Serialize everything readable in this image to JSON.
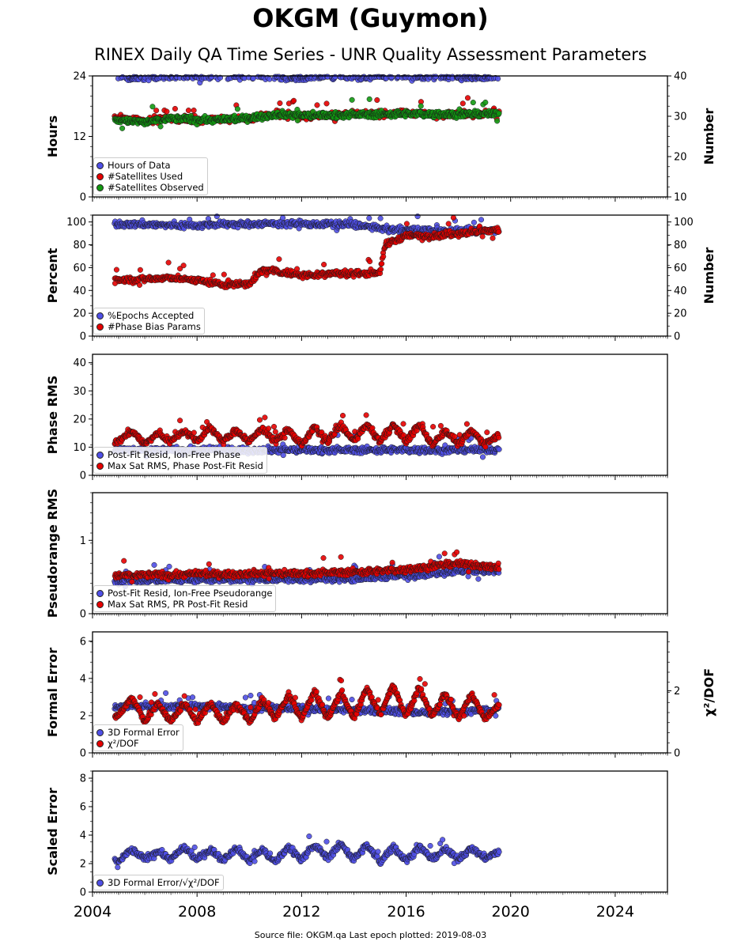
{
  "title": "OKGM (Guymon)",
  "subtitle": "RINEX Daily QA Time Series - UNR Quality Assessment Parameters",
  "source_text": "Source file: OKGM.qa Last epoch plotted: 2019-08-03",
  "colors": {
    "blue": "#4f4fe6",
    "red": "#e60000",
    "green": "#119911",
    "edge": "#1a1a1a"
  },
  "chart_data": [
    {
      "id": "hours",
      "type": "scatter",
      "ylabel": "Hours",
      "ylabel_right": "Number",
      "xlim": [
        2004,
        2026
      ],
      "ylim": [
        0,
        24
      ],
      "yticks": [
        "0",
        "12",
        "24"
      ],
      "ylim_right": [
        10,
        40
      ],
      "yticks_right": [
        "10",
        "20",
        "30",
        "40"
      ],
      "legend_placement": "lower-left",
      "series": [
        {
          "name": "Hours of Data",
          "color": "blue",
          "axis": "left",
          "x": [
            2005.0,
            2005.5,
            2006.0,
            2006.5,
            2007.0,
            2007.5,
            2008.0,
            2009.0,
            2010.0,
            2011.0,
            2011.8,
            2012.5,
            2013.5,
            2014.5,
            2015.5,
            2016.5,
            2017.5,
            2018.5,
            2019.5
          ],
          "values": [
            24,
            23.6,
            23.8,
            24,
            24,
            23.8,
            24,
            24,
            24,
            24,
            23.5,
            23.8,
            24,
            23.7,
            24,
            23.8,
            24,
            23.6,
            24
          ]
        },
        {
          "name": "#Satellites Used",
          "color": "red",
          "axis": "right",
          "x": [
            2005.0,
            2006.0,
            2007.0,
            2008.0,
            2009.0,
            2010.0,
            2011.0,
            2012.0,
            2013.0,
            2014.0,
            2015.0,
            2016.0,
            2017.0,
            2018.0,
            2019.0,
            2019.5
          ],
          "values": [
            29.5,
            29,
            29.5,
            29,
            29.2,
            29.5,
            30.5,
            30,
            30.2,
            30.5,
            30.5,
            30.8,
            30.5,
            30.6,
            30.5,
            30.7
          ]
        },
        {
          "name": "#Satellites Observed",
          "color": "green",
          "axis": "right",
          "x": [
            2005.0,
            2006.0,
            2007.0,
            2008.0,
            2009.0,
            2010.0,
            2011.0,
            2012.0,
            2013.0,
            2014.0,
            2015.0,
            2016.0,
            2017.0,
            2018.0,
            2019.0,
            2019.5
          ],
          "values": [
            29,
            28.5,
            29.5,
            29.2,
            29,
            29.6,
            30.5,
            30.2,
            30.3,
            30.4,
            30.5,
            30.6,
            30.5,
            30.6,
            30.5,
            30.6
          ]
        }
      ]
    },
    {
      "id": "percent",
      "type": "scatter",
      "ylabel": "Percent",
      "ylabel_right": "Number",
      "xlim": [
        2004,
        2026
      ],
      "ylim": [
        0,
        106
      ],
      "yticks": [
        "0",
        "20",
        "40",
        "60",
        "80",
        "100"
      ],
      "ylim_right": [
        0,
        106
      ],
      "yticks_right": [
        "0",
        "20",
        "40",
        "60",
        "80",
        "100"
      ],
      "legend_placement": "lower-left",
      "series": [
        {
          "name": "%Epochs Accepted",
          "color": "blue",
          "axis": "left",
          "x": [
            2005.0,
            2006.0,
            2007.0,
            2008.0,
            2009.0,
            2010.0,
            2011.0,
            2012.0,
            2013.0,
            2014.0,
            2015.0,
            2016.0,
            2017.0,
            2018.0,
            2019.0,
            2019.5
          ],
          "values": [
            98,
            98,
            97,
            97,
            98,
            98,
            99,
            98,
            98,
            98,
            94,
            93,
            92,
            93,
            92,
            93
          ]
        },
        {
          "name": "#Phase Bias Params",
          "color": "red",
          "axis": "right",
          "x": [
            2005.0,
            2006.0,
            2007.0,
            2008.0,
            2009.0,
            2010.0,
            2010.5,
            2011.0,
            2012.0,
            2013.0,
            2014.0,
            2015.0,
            2015.2,
            2016.0,
            2017.0,
            2018.0,
            2019.0,
            2019.5
          ],
          "values": [
            49,
            50,
            51,
            49,
            45,
            46,
            58,
            57,
            53,
            55,
            55,
            56,
            80,
            88,
            88,
            90,
            92,
            93
          ]
        }
      ]
    },
    {
      "id": "phase_rms",
      "type": "scatter",
      "ylabel": "Phase RMS",
      "xlim": [
        2004,
        2026
      ],
      "ylim": [
        0,
        43
      ],
      "yticks": [
        "0",
        "10",
        "20",
        "30",
        "40"
      ],
      "legend_placement": "lower-left",
      "series": [
        {
          "name": "Post-Fit Resid, Ion-Free Phase",
          "color": "blue",
          "axis": "left",
          "x": [
            2005.0,
            2006.0,
            2007.0,
            2008.0,
            2009.0,
            2010.0,
            2011.0,
            2012.0,
            2013.0,
            2014.0,
            2015.0,
            2016.0,
            2017.0,
            2018.0,
            2019.0,
            2019.5
          ],
          "values": [
            9,
            9,
            9,
            9,
            9,
            9,
            9,
            9,
            9,
            9,
            9,
            9,
            9,
            9,
            9,
            9
          ]
        },
        {
          "name": "Max Sat RMS, Phase Post-Fit Resid",
          "color": "red",
          "axis": "left",
          "x": [
            2005.0,
            2005.5,
            2006.0,
            2006.5,
            2007.0,
            2007.5,
            2008.0,
            2008.5,
            2009.0,
            2009.5,
            2010.0,
            2010.5,
            2011.0,
            2011.5,
            2012.0,
            2012.5,
            2013.0,
            2013.5,
            2014.0,
            2014.5,
            2015.0,
            2015.5,
            2016.0,
            2016.5,
            2017.0,
            2017.5,
            2018.0,
            2018.5,
            2019.0,
            2019.5
          ],
          "values": [
            12,
            16,
            11,
            15,
            12,
            16,
            12,
            17,
            12,
            16,
            12,
            17,
            12,
            16,
            11,
            17,
            12,
            18,
            12,
            18,
            12,
            18,
            12,
            18,
            11,
            16,
            11,
            16,
            11,
            14
          ]
        }
      ]
    },
    {
      "id": "pseudorange_rms",
      "type": "scatter",
      "ylabel": "Pseudorange RMS",
      "xlim": [
        2004,
        2026
      ],
      "ylim": [
        0,
        1.65
      ],
      "yticks": [
        "0",
        "1"
      ],
      "legend_placement": "lower-left",
      "series": [
        {
          "name": "Post-Fit Resid, Ion-Free Pseudorange",
          "color": "blue",
          "axis": "left",
          "x": [
            2005.0,
            2006.0,
            2007.0,
            2008.0,
            2009.0,
            2010.0,
            2011.0,
            2012.0,
            2013.0,
            2014.0,
            2015.0,
            2016.0,
            2017.0,
            2018.0,
            2019.0,
            2019.5
          ],
          "values": [
            0.45,
            0.45,
            0.46,
            0.46,
            0.47,
            0.47,
            0.47,
            0.47,
            0.48,
            0.48,
            0.5,
            0.52,
            0.55,
            0.58,
            0.58,
            0.57
          ]
        },
        {
          "name": "Max Sat RMS, PR Post-Fit Resid",
          "color": "red",
          "axis": "left",
          "x": [
            2005.0,
            2006.0,
            2007.0,
            2008.0,
            2009.0,
            2010.0,
            2011.0,
            2012.0,
            2013.0,
            2014.0,
            2015.0,
            2016.0,
            2017.0,
            2018.0,
            2019.0,
            2019.5
          ],
          "values": [
            0.52,
            0.53,
            0.53,
            0.54,
            0.54,
            0.55,
            0.55,
            0.55,
            0.56,
            0.57,
            0.58,
            0.6,
            0.65,
            0.68,
            0.65,
            0.63
          ]
        }
      ]
    },
    {
      "id": "formal_error",
      "type": "scatter",
      "ylabel": "Formal Error",
      "ylabel_right": "χ²/DOF",
      "xlim": [
        2004,
        2026
      ],
      "ylim": [
        0,
        6.5
      ],
      "yticks": [
        "0",
        "2",
        "4",
        "6"
      ],
      "ylim_right": [
        0,
        3.9
      ],
      "yticks_right": [
        "0",
        "2"
      ],
      "legend_placement": "lower-left",
      "series": [
        {
          "name": "3D Formal Error",
          "color": "blue",
          "axis": "left",
          "x": [
            2005.0,
            2006.0,
            2007.0,
            2008.0,
            2009.0,
            2010.0,
            2011.0,
            2012.0,
            2013.0,
            2014.0,
            2015.0,
            2016.0,
            2017.0,
            2018.0,
            2019.0,
            2019.5
          ],
          "values": [
            2.5,
            2.5,
            2.5,
            2.5,
            2.5,
            2.4,
            2.4,
            2.4,
            2.3,
            2.3,
            2.3,
            2.2,
            2.2,
            2.2,
            2.3,
            2.3
          ]
        },
        {
          "name": "χ²/DOF",
          "color": "red",
          "axis": "right",
          "x": [
            2005.0,
            2005.5,
            2006.0,
            2006.5,
            2007.0,
            2007.5,
            2008.0,
            2008.5,
            2009.0,
            2009.5,
            2010.0,
            2010.5,
            2011.0,
            2011.5,
            2012.0,
            2012.5,
            2013.0,
            2013.5,
            2014.0,
            2014.5,
            2015.0,
            2015.5,
            2016.0,
            2016.5,
            2017.0,
            2017.5,
            2018.0,
            2018.5,
            2019.0,
            2019.5
          ],
          "values": [
            1.2,
            1.8,
            1.0,
            1.6,
            1.0,
            1.6,
            1.0,
            1.6,
            1.0,
            1.6,
            1.0,
            1.7,
            1.1,
            1.9,
            1.1,
            2.0,
            1.1,
            2.0,
            1.1,
            2.1,
            1.2,
            2.2,
            1.2,
            2.1,
            1.2,
            1.9,
            1.1,
            1.9,
            1.1,
            1.5
          ]
        }
      ]
    },
    {
      "id": "scaled_error",
      "type": "scatter",
      "ylabel": "Scaled Error",
      "xlim": [
        2004,
        2026
      ],
      "ylim": [
        0,
        8.5
      ],
      "yticks": [
        "0",
        "2",
        "4",
        "6",
        "8"
      ],
      "xticks": [
        "2004",
        "2008",
        "2012",
        "2016",
        "2020",
        "2024"
      ],
      "legend_placement": "lower-left",
      "series": [
        {
          "name": "3D Formal Error/√χ²/DOF",
          "color": "blue",
          "axis": "left",
          "x": [
            2005.0,
            2005.5,
            2006.0,
            2006.5,
            2007.0,
            2007.5,
            2008.0,
            2008.5,
            2009.0,
            2009.5,
            2010.0,
            2010.5,
            2011.0,
            2011.5,
            2012.0,
            2012.5,
            2013.0,
            2013.5,
            2014.0,
            2014.5,
            2015.0,
            2015.5,
            2016.0,
            2016.5,
            2017.0,
            2017.5,
            2018.0,
            2018.5,
            2019.0,
            2019.5
          ],
          "values": [
            2.2,
            3.0,
            2.3,
            2.9,
            2.3,
            3.1,
            2.3,
            3.0,
            2.3,
            3.1,
            2.2,
            3.0,
            2.1,
            3.2,
            2.3,
            3.3,
            2.4,
            3.4,
            2.3,
            3.3,
            2.1,
            3.2,
            2.2,
            3.2,
            2.3,
            3.0,
            2.3,
            3.1,
            2.4,
            2.8
          ]
        }
      ]
    }
  ]
}
